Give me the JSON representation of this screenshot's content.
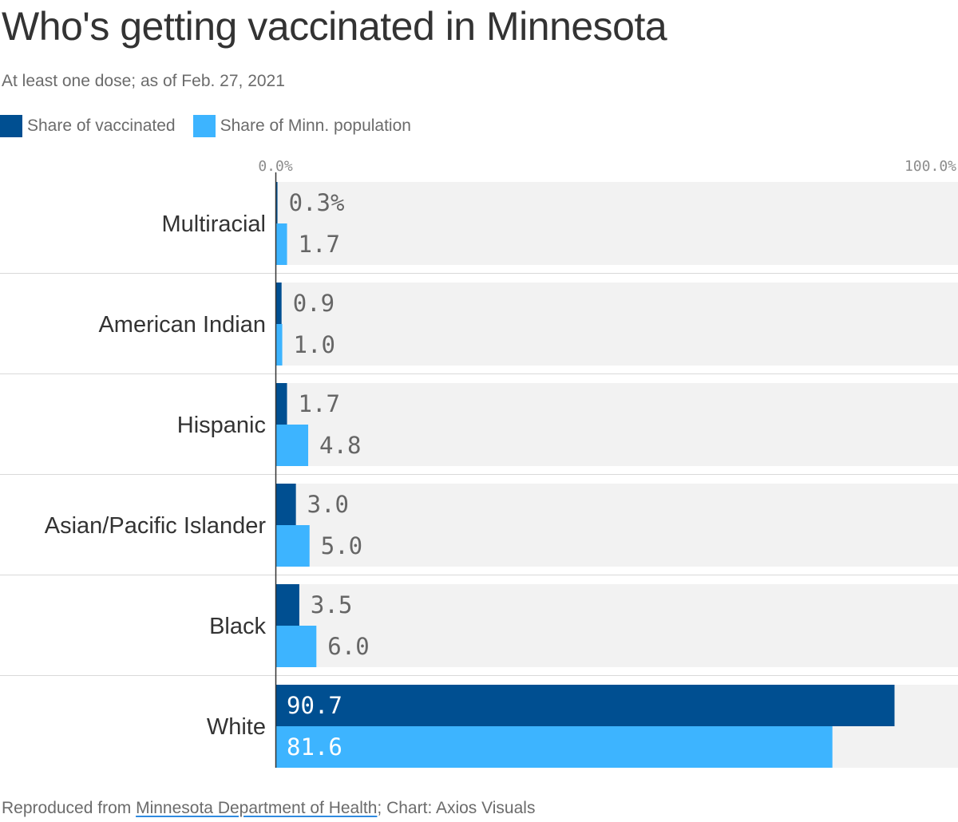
{
  "title": "Who's getting vaccinated in Minnesota",
  "subtitle": "At least one dose; as of Feb. 27, 2021",
  "footer": {
    "prefix": "Reproduced from ",
    "source": "Minnesota Department of Health",
    "suffix": "; Chart: Axios Visuals"
  },
  "colors": {
    "vaccinated": "#004f91",
    "population": "#3db4ff",
    "track": "#f2f2f2",
    "label_dark": "#666666",
    "label_light": "#ffffff"
  },
  "chart_data": {
    "type": "bar",
    "orientation": "horizontal",
    "title": "Who's getting vaccinated in Minnesota",
    "subtitle": "At least one dose; as of Feb. 27, 2021",
    "categories": [
      "Multiracial",
      "American Indian",
      "Hispanic",
      "Asian/Pacific Islander",
      "Black",
      "White"
    ],
    "series": [
      {
        "name": "Share of vaccinated",
        "values": [
          0.3,
          0.9,
          1.7,
          3.0,
          3.5,
          90.7
        ],
        "labels": [
          "0.3%",
          "0.9",
          "1.7",
          "3.0",
          "3.5",
          "90.7"
        ]
      },
      {
        "name": "Share of Minn. population",
        "values": [
          1.7,
          1.0,
          4.8,
          5.0,
          6.0,
          81.6
        ],
        "labels": [
          "1.7",
          "1.0",
          "4.8",
          "5.0",
          "6.0",
          "81.6"
        ]
      }
    ],
    "xlim": [
      0,
      100
    ],
    "ticks": [
      "0.0%",
      "100.0%"
    ],
    "legend_position": "top-left",
    "grid": false
  }
}
